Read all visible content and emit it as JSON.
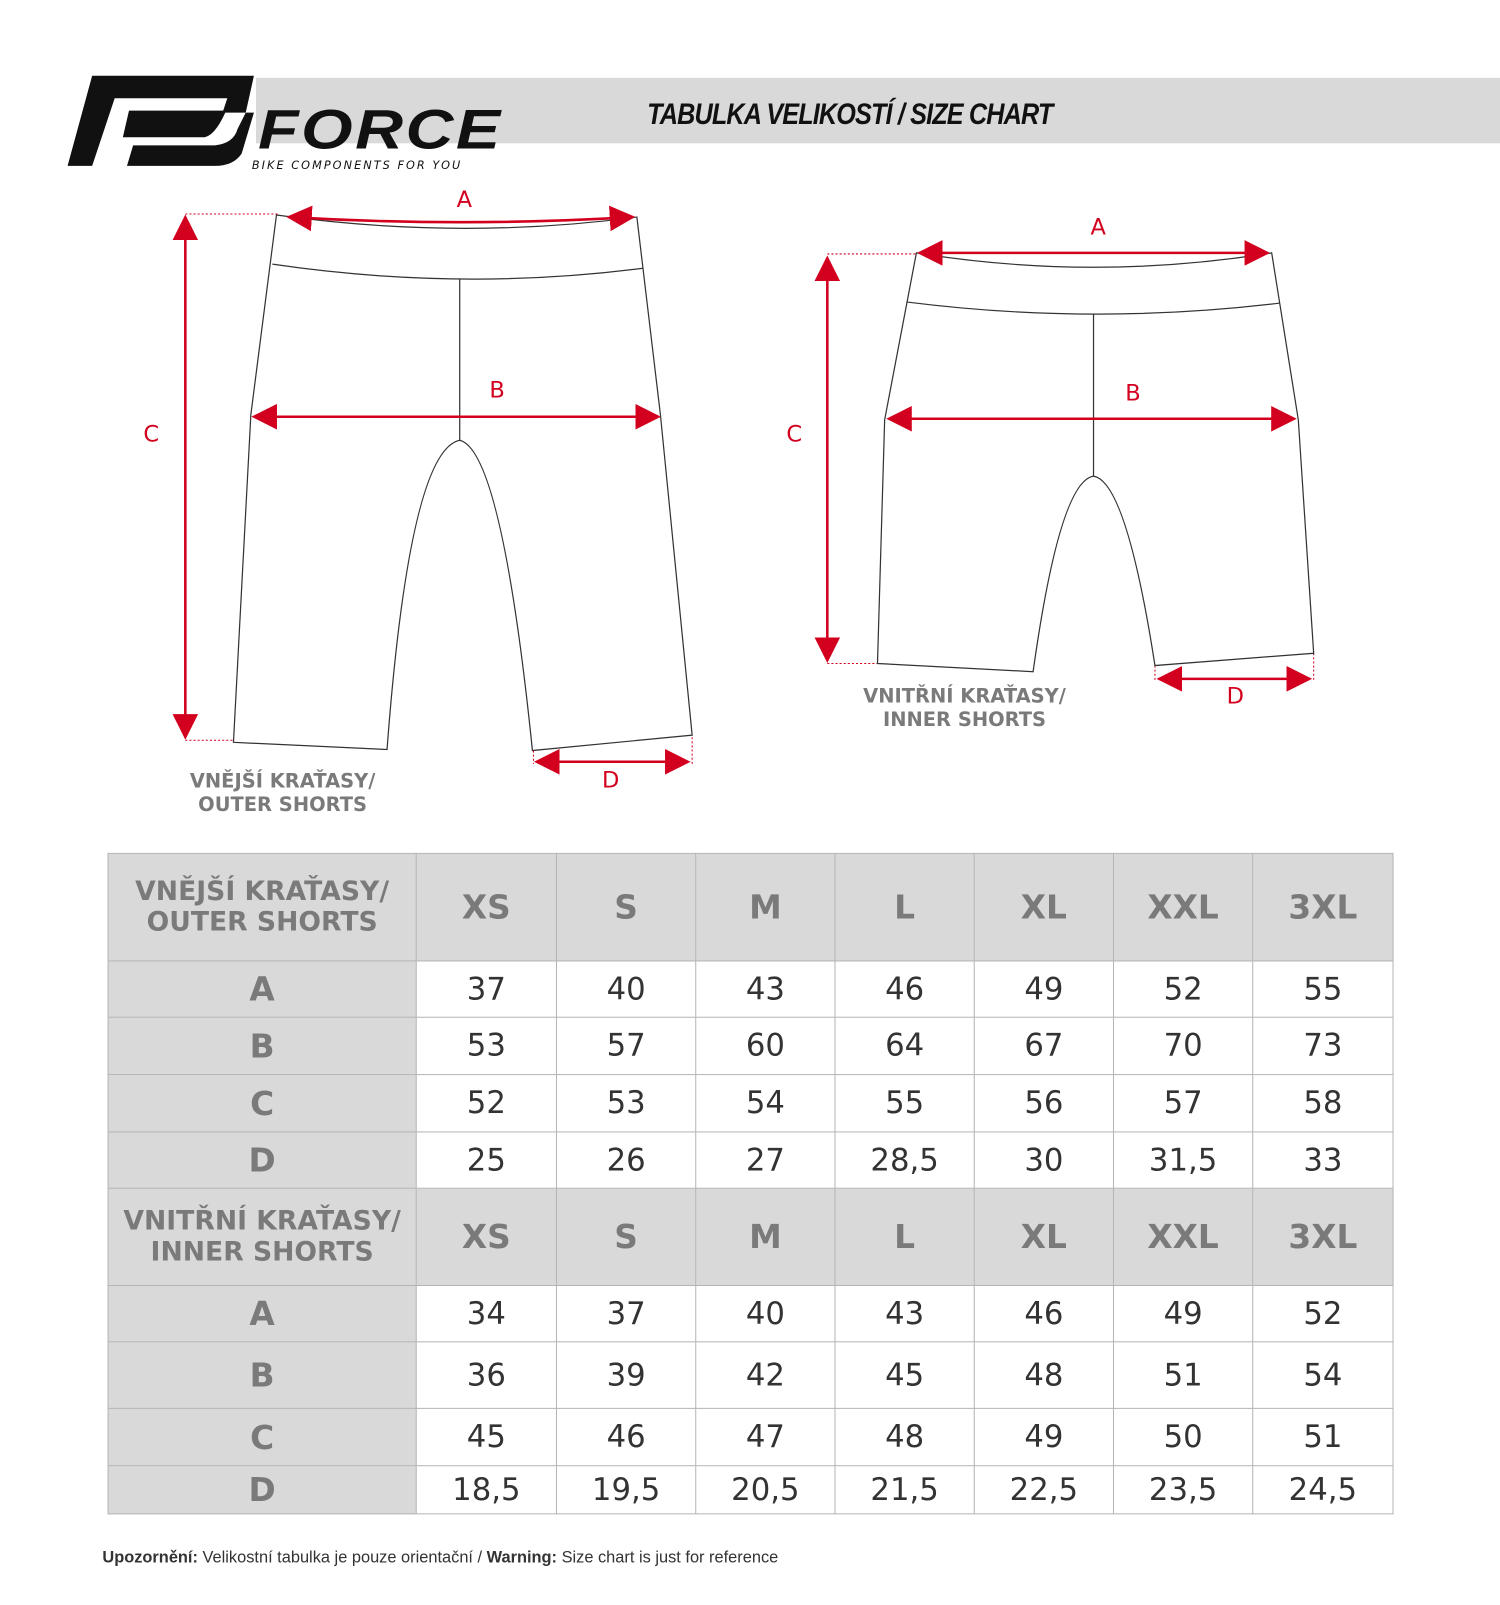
{
  "header": {
    "brand": "FORCE",
    "tagline": "BIKE COMPONENTS FOR YOU",
    "title": "TABULKA VELIKOSTÍ / SIZE CHART"
  },
  "diagrams": {
    "outer": {
      "label_line1": "VNĚJŠÍ KRAŤASY/",
      "label_line2": "OUTER SHORTS",
      "a": "A",
      "b": "B",
      "c": "C",
      "d": "D"
    },
    "inner": {
      "label_line1": "VNITŘNÍ KRAŤASY/",
      "label_line2": "INNER SHORTS",
      "a": "A",
      "b": "B",
      "c": "C",
      "d": "D"
    },
    "colors": {
      "arrow": "#d2001e",
      "outline": "#333333"
    }
  },
  "table": {
    "sizes": [
      "XS",
      "S",
      "M",
      "L",
      "XL",
      "XXL",
      "3XL"
    ],
    "sections": [
      {
        "title_line1": "VNĚJŠÍ KRAŤASY/",
        "title_line2": "OUTER SHORTS",
        "rows": [
          {
            "label": "A",
            "values": [
              "37",
              "40",
              "43",
              "46",
              "49",
              "52",
              "55"
            ]
          },
          {
            "label": "B",
            "values": [
              "53",
              "57",
              "60",
              "64",
              "67",
              "70",
              "73"
            ]
          },
          {
            "label": "C",
            "values": [
              "52",
              "53",
              "54",
              "55",
              "56",
              "57",
              "58"
            ]
          },
          {
            "label": "D",
            "values": [
              "25",
              "26",
              "27",
              "28,5",
              "30",
              "31,5",
              "33"
            ]
          }
        ]
      },
      {
        "title_line1": "VNITŘNÍ KRAŤASY/",
        "title_line2": "INNER SHORTS",
        "rows": [
          {
            "label": "A",
            "values": [
              "34",
              "37",
              "40",
              "43",
              "46",
              "49",
              "52"
            ]
          },
          {
            "label": "B",
            "values": [
              "36",
              "39",
              "42",
              "45",
              "48",
              "51",
              "54"
            ]
          },
          {
            "label": "C",
            "values": [
              "45",
              "46",
              "47",
              "48",
              "49",
              "50",
              "51"
            ]
          },
          {
            "label": "D",
            "values": [
              "18,5",
              "19,5",
              "20,5",
              "21,5",
              "22,5",
              "23,5",
              "24,5"
            ]
          }
        ]
      }
    ]
  },
  "footer": {
    "warn_cz_label": "Upozornění:",
    "warn_cz_text": " Velikostní tabulka je pouze orientační / ",
    "warn_en_label": "Warning:",
    "warn_en_text": " Size chart is just for reference"
  }
}
